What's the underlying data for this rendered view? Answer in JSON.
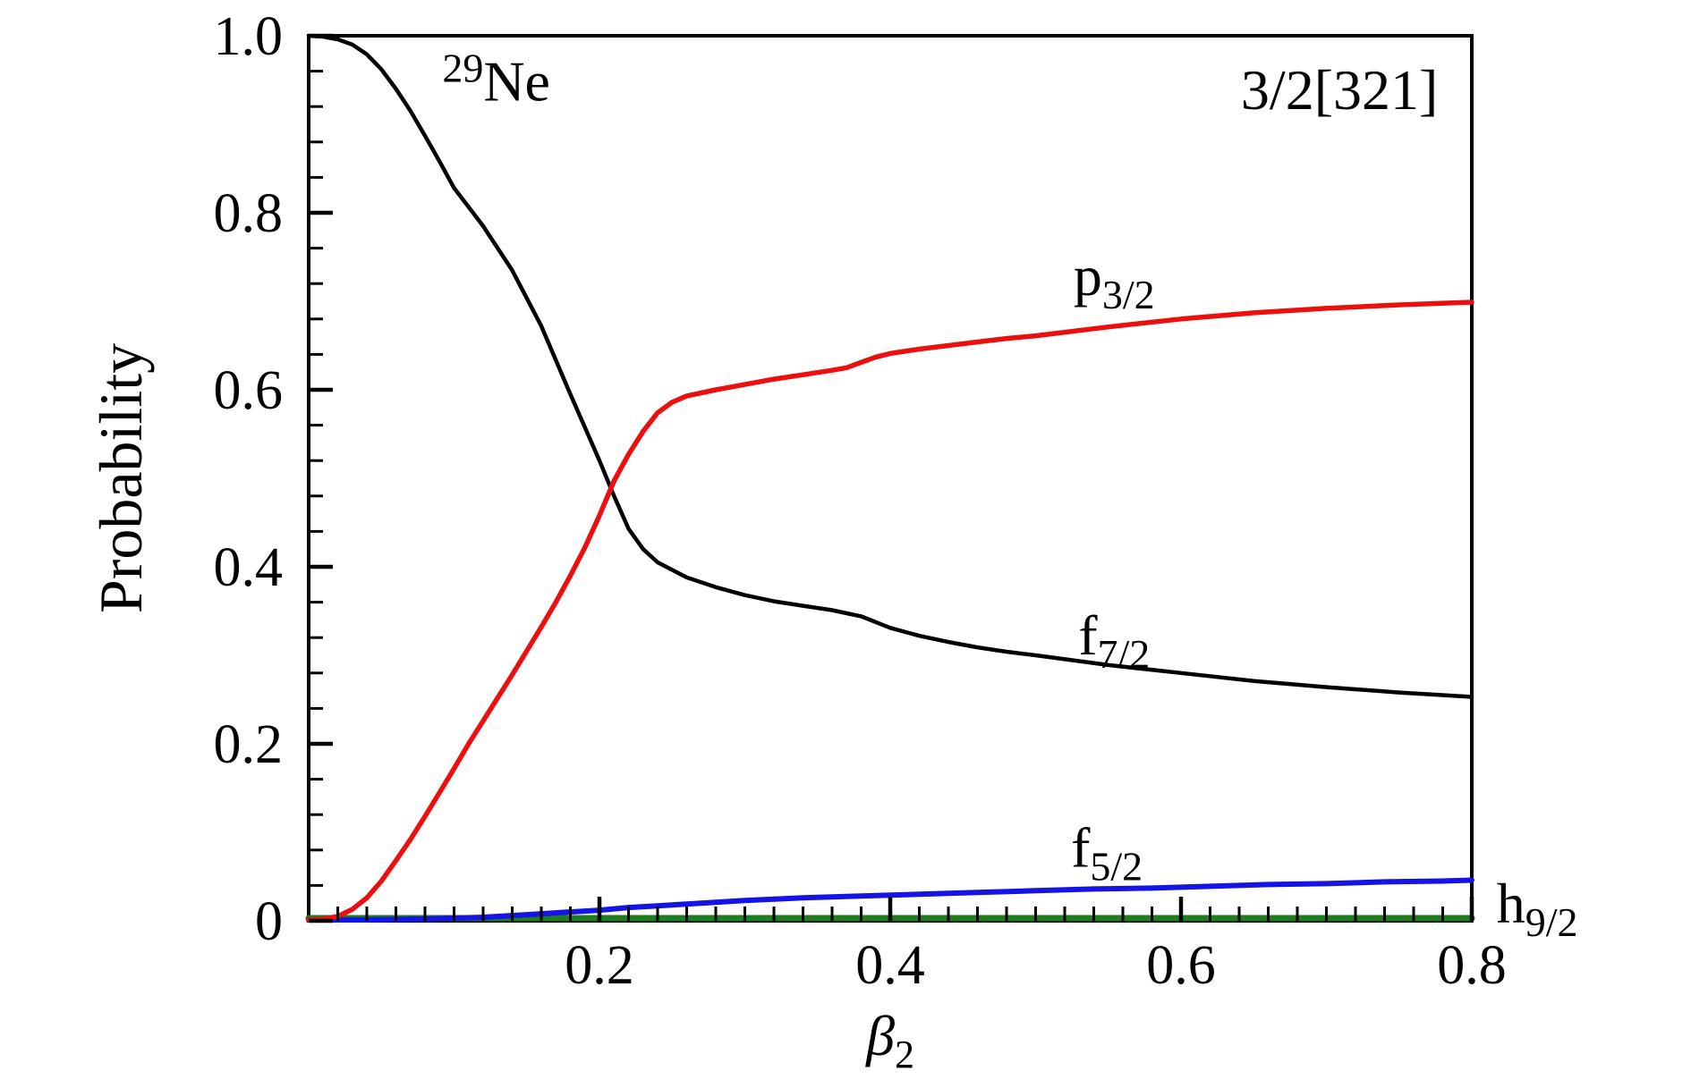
{
  "figure": {
    "background": "#ffffff",
    "frame_color": "#000000"
  },
  "chart_data": {
    "type": "line",
    "title": "",
    "xlabel": {
      "base": "β",
      "sub": "2"
    },
    "ylabel": "Probability",
    "xlim": [
      0,
      0.8
    ],
    "ylim": [
      0,
      1.0
    ],
    "grid": false,
    "legend": "inline-curve-labels",
    "x_major_ticks": [
      0.2,
      0.4,
      0.6,
      0.8
    ],
    "x_major_tick_labels": [
      "0.2",
      "0.4",
      "0.6",
      "0.8"
    ],
    "x_minor_tick_step": 0.02,
    "y_major_ticks": [
      0,
      0.2,
      0.4,
      0.6,
      0.8,
      1.0
    ],
    "y_major_tick_labels": [
      "0",
      "0.2",
      "0.4",
      "0.6",
      "0.8",
      "1.0"
    ],
    "y_minor_tick_step": 0.04,
    "series": [
      {
        "name": "h9/2",
        "color": "#1e7d1e",
        "stroke_width": 7,
        "points": [
          [
            0,
            0.003
          ],
          [
            0.2,
            0.003
          ],
          [
            0.4,
            0.003
          ],
          [
            0.6,
            0.003
          ],
          [
            0.8,
            0.003
          ]
        ]
      },
      {
        "name": "f5/2",
        "color": "#1414e6",
        "stroke_width": 6,
        "points": [
          [
            0,
            0.001
          ],
          [
            0.04,
            0.001
          ],
          [
            0.08,
            0.002
          ],
          [
            0.1,
            0.003
          ],
          [
            0.12,
            0.004
          ],
          [
            0.14,
            0.006
          ],
          [
            0.16,
            0.008
          ],
          [
            0.18,
            0.01
          ],
          [
            0.2,
            0.012
          ],
          [
            0.22,
            0.015
          ],
          [
            0.24,
            0.017
          ],
          [
            0.26,
            0.019
          ],
          [
            0.28,
            0.021
          ],
          [
            0.3,
            0.023
          ],
          [
            0.34,
            0.026
          ],
          [
            0.38,
            0.028
          ],
          [
            0.42,
            0.03
          ],
          [
            0.46,
            0.032
          ],
          [
            0.5,
            0.034
          ],
          [
            0.54,
            0.036
          ],
          [
            0.58,
            0.037
          ],
          [
            0.62,
            0.039
          ],
          [
            0.66,
            0.041
          ],
          [
            0.7,
            0.042
          ],
          [
            0.74,
            0.044
          ],
          [
            0.78,
            0.045
          ],
          [
            0.8,
            0.046
          ]
        ]
      },
      {
        "name": "f7/2",
        "color": "#000000",
        "stroke_width": 4.5,
        "points": [
          [
            0,
            1.0
          ],
          [
            0.01,
            0.999
          ],
          [
            0.02,
            0.996
          ],
          [
            0.03,
            0.99
          ],
          [
            0.04,
            0.979
          ],
          [
            0.05,
            0.962
          ],
          [
            0.06,
            0.94
          ],
          [
            0.07,
            0.915
          ],
          [
            0.08,
            0.887
          ],
          [
            0.09,
            0.858
          ],
          [
            0.1,
            0.828
          ],
          [
            0.12,
            0.785
          ],
          [
            0.14,
            0.735
          ],
          [
            0.16,
            0.672
          ],
          [
            0.18,
            0.595
          ],
          [
            0.2,
            0.52
          ],
          [
            0.21,
            0.48
          ],
          [
            0.22,
            0.443
          ],
          [
            0.23,
            0.42
          ],
          [
            0.24,
            0.405
          ],
          [
            0.26,
            0.388
          ],
          [
            0.28,
            0.377
          ],
          [
            0.3,
            0.368
          ],
          [
            0.32,
            0.361
          ],
          [
            0.34,
            0.356
          ],
          [
            0.36,
            0.351
          ],
          [
            0.38,
            0.344
          ],
          [
            0.4,
            0.331
          ],
          [
            0.42,
            0.322
          ],
          [
            0.44,
            0.315
          ],
          [
            0.46,
            0.309
          ],
          [
            0.48,
            0.304
          ],
          [
            0.5,
            0.3
          ],
          [
            0.55,
            0.289
          ],
          [
            0.6,
            0.28
          ],
          [
            0.65,
            0.271
          ],
          [
            0.7,
            0.264
          ],
          [
            0.75,
            0.258
          ],
          [
            0.8,
            0.253
          ]
        ]
      },
      {
        "name": "p3/2",
        "color": "#ed0e0e",
        "stroke_width": 5.5,
        "points": [
          [
            0,
            0.001
          ],
          [
            0.01,
            0.002
          ],
          [
            0.02,
            0.005
          ],
          [
            0.03,
            0.013
          ],
          [
            0.04,
            0.026
          ],
          [
            0.05,
            0.045
          ],
          [
            0.06,
            0.068
          ],
          [
            0.07,
            0.092
          ],
          [
            0.08,
            0.118
          ],
          [
            0.09,
            0.145
          ],
          [
            0.1,
            0.172
          ],
          [
            0.11,
            0.2
          ],
          [
            0.12,
            0.226
          ],
          [
            0.13,
            0.252
          ],
          [
            0.14,
            0.278
          ],
          [
            0.15,
            0.305
          ],
          [
            0.16,
            0.332
          ],
          [
            0.17,
            0.36
          ],
          [
            0.18,
            0.39
          ],
          [
            0.19,
            0.422
          ],
          [
            0.2,
            0.458
          ],
          [
            0.21,
            0.497
          ],
          [
            0.22,
            0.527
          ],
          [
            0.23,
            0.553
          ],
          [
            0.24,
            0.574
          ],
          [
            0.25,
            0.586
          ],
          [
            0.26,
            0.593
          ],
          [
            0.28,
            0.6
          ],
          [
            0.3,
            0.606
          ],
          [
            0.32,
            0.612
          ],
          [
            0.34,
            0.617
          ],
          [
            0.36,
            0.622
          ],
          [
            0.37,
            0.625
          ],
          [
            0.38,
            0.631
          ],
          [
            0.39,
            0.637
          ],
          [
            0.4,
            0.641
          ],
          [
            0.42,
            0.646
          ],
          [
            0.44,
            0.65
          ],
          [
            0.46,
            0.654
          ],
          [
            0.48,
            0.658
          ],
          [
            0.5,
            0.661
          ],
          [
            0.55,
            0.671
          ],
          [
            0.6,
            0.68
          ],
          [
            0.65,
            0.687
          ],
          [
            0.7,
            0.692
          ],
          [
            0.75,
            0.696
          ],
          [
            0.8,
            0.699
          ]
        ]
      }
    ],
    "annotations": [
      {
        "id": "nucleus-label",
        "sup": "29",
        "base": "Ne",
        "sub": "",
        "color": "#000000",
        "x": 0.129,
        "y": 0.927
      },
      {
        "id": "nilsson-label",
        "sup": "",
        "base": "3/2[321]",
        "sub": "",
        "color": "#000000",
        "x": 0.709,
        "y": 0.917
      },
      {
        "id": "p32-label",
        "sup": "",
        "base": "p",
        "sub": "3/2",
        "color": "#ed0e0e",
        "x": 0.554,
        "y": 0.707
      },
      {
        "id": "f72-label",
        "sup": "",
        "base": "f",
        "sub": "7/2",
        "color": "#000000",
        "x": 0.554,
        "y": 0.301
      },
      {
        "id": "f52-label",
        "sup": "",
        "base": "f",
        "sub": "5/2",
        "color": "#000000",
        "x": 0.549,
        "y": 0.061
      },
      {
        "id": "h92-label",
        "sup": "",
        "base": "h",
        "sub": "9/2",
        "color": "#1e7d1e",
        "x": 0.845,
        "y": -0.002
      }
    ]
  }
}
